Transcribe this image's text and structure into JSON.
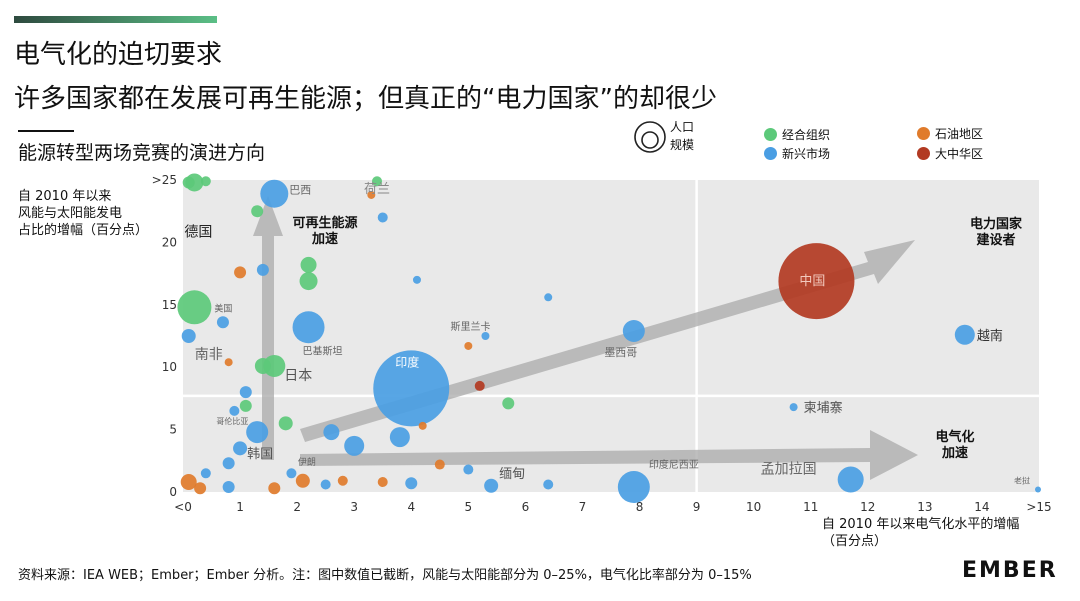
{
  "header": {
    "title_line1": "电气化的迫切要求",
    "title_line2": "许多国家都在发展可再生能源；但真正的“电力国家”的却很少",
    "subtitle": "能源转型两场竞赛的演进方向"
  },
  "legend": {
    "size_title": "人口\n规模",
    "items": [
      {
        "label": "经合组织",
        "color": "#5cc97a"
      },
      {
        "label": "新兴市场",
        "color": "#4a9ee3"
      },
      {
        "label": "石油地区",
        "color": "#e07b2b"
      },
      {
        "label": "大中华区",
        "color": "#b23a22"
      }
    ]
  },
  "chart_data": {
    "type": "scatter",
    "ylabel": "自 2010 年以来\n风能与太阳能发电\n占比的增幅（百分点）",
    "xlabel": "自 2010 年以来电气化水平的增幅\n（百分点）",
    "x_ticks": [
      "<0",
      "1",
      "2",
      "3",
      "4",
      "5",
      "6",
      "7",
      "8",
      "9",
      "10",
      "11",
      "12",
      "13",
      "14",
      ">15"
    ],
    "y_ticks": [
      "0",
      "5",
      "10",
      "15",
      "20",
      ">25"
    ],
    "xlim": [
      0,
      15
    ],
    "ylim": [
      0,
      25
    ],
    "quadrant_lines": {
      "x": 9,
      "y": 7.7
    },
    "arrows": [
      {
        "label": "可再生能源\n加速"
      },
      {
        "label": "电力国家\n建设者"
      },
      {
        "label": "电气化\n加速"
      }
    ],
    "points": [
      {
        "label": "中国",
        "x": 11.1,
        "y": 16.9,
        "group": "大中华区",
        "size": 38
      },
      {
        "label": "印度",
        "x": 4.0,
        "y": 8.3,
        "group": "新兴市场",
        "size": 38
      },
      {
        "label": "越南",
        "x": 13.7,
        "y": 12.6,
        "group": "新兴市场",
        "size": 10
      },
      {
        "label": "墨西哥",
        "x": 7.9,
        "y": 12.9,
        "group": "新兴市场",
        "size": 11
      },
      {
        "label": "印度尼西亚",
        "x": 7.9,
        "y": 0.4,
        "group": "新兴市场",
        "size": 16
      },
      {
        "label": "孟加拉国",
        "x": 11.7,
        "y": 1.0,
        "group": "新兴市场",
        "size": 13
      },
      {
        "label": "柬埔寨",
        "x": 10.7,
        "y": 6.8,
        "group": "新兴市场",
        "size": 4
      },
      {
        "label": "缅甸",
        "x": 5.4,
        "y": 0.5,
        "group": "新兴市场",
        "size": 7
      },
      {
        "label": "巴西",
        "x": 1.6,
        "y": 23.9,
        "group": "新兴市场",
        "size": 14
      },
      {
        "label": "巴基斯坦",
        "x": 2.2,
        "y": 13.2,
        "group": "新兴市场",
        "size": 16
      },
      {
        "label": "南非",
        "x": 0.1,
        "y": 12.5,
        "group": "新兴市场",
        "size": 7
      },
      {
        "label": "斯里兰卡",
        "x": 5.3,
        "y": 12.5,
        "group": "新兴市场",
        "size": 4
      },
      {
        "label": "伊朗",
        "x": 2.1,
        "y": 0.9,
        "group": "石油地区",
        "size": 7
      },
      {
        "label": "德国",
        "x": 0.2,
        "y": 24.8,
        "group": "经合组织",
        "size": 9
      },
      {
        "label": "荷兰",
        "x": 3.4,
        "y": 24.9,
        "group": "经合组织",
        "size": 5
      },
      {
        "label": "美国",
        "x": 0.2,
        "y": 14.8,
        "group": "经合组织",
        "size": 17
      },
      {
        "label": "日本",
        "x": 1.6,
        "y": 10.1,
        "group": "经合组织",
        "size": 11
      },
      {
        "label": "韩国",
        "x": 1.3,
        "y": 4.8,
        "group": "新兴市场",
        "size": 11
      },
      {
        "label": "哥伦比亚",
        "x": 0.9,
        "y": 6.5,
        "group": "新兴市场",
        "size": 5
      },
      {
        "label": "老挝",
        "x": 15.0,
        "y": 0.2,
        "group": "新兴市场",
        "size": 3
      },
      {
        "label": "",
        "x": 0.1,
        "y": 24.8,
        "group": "经合组织",
        "size": 6
      },
      {
        "label": "",
        "x": 0.4,
        "y": 24.9,
        "group": "经合组织",
        "size": 5
      },
      {
        "label": "",
        "x": 1.3,
        "y": 22.5,
        "group": "经合组织",
        "size": 6
      },
      {
        "label": "",
        "x": 2.2,
        "y": 18.2,
        "group": "经合组织",
        "size": 8
      },
      {
        "label": "",
        "x": 2.2,
        "y": 16.9,
        "group": "经合组织",
        "size": 9
      },
      {
        "label": "",
        "x": 1.4,
        "y": 17.8,
        "group": "新兴市场",
        "size": 6
      },
      {
        "label": "",
        "x": 1.0,
        "y": 17.6,
        "group": "石油地区",
        "size": 6
      },
      {
        "label": "",
        "x": 0.7,
        "y": 13.6,
        "group": "新兴市场",
        "size": 6
      },
      {
        "label": "",
        "x": 0.8,
        "y": 10.4,
        "group": "石油地区",
        "size": 4
      },
      {
        "label": "",
        "x": 1.4,
        "y": 10.1,
        "group": "经合组织",
        "size": 8
      },
      {
        "label": "",
        "x": 1.1,
        "y": 8.0,
        "group": "新兴市场",
        "size": 6
      },
      {
        "label": "",
        "x": 1.1,
        "y": 6.9,
        "group": "经合组织",
        "size": 6
      },
      {
        "label": "",
        "x": 1.8,
        "y": 5.5,
        "group": "经合组织",
        "size": 7
      },
      {
        "label": "",
        "x": 1.0,
        "y": 3.5,
        "group": "新兴市场",
        "size": 7
      },
      {
        "label": "",
        "x": 0.8,
        "y": 2.3,
        "group": "新兴市场",
        "size": 6
      },
      {
        "label": "",
        "x": 0.4,
        "y": 1.5,
        "group": "新兴市场",
        "size": 5
      },
      {
        "label": "",
        "x": 0.1,
        "y": 0.8,
        "group": "石油地区",
        "size": 8
      },
      {
        "label": "",
        "x": 0.3,
        "y": 0.3,
        "group": "石油地区",
        "size": 6
      },
      {
        "label": "",
        "x": 0.8,
        "y": 0.4,
        "group": "新兴市场",
        "size": 6
      },
      {
        "label": "",
        "x": 1.6,
        "y": 0.3,
        "group": "石油地区",
        "size": 6
      },
      {
        "label": "",
        "x": 1.9,
        "y": 1.5,
        "group": "新兴市场",
        "size": 5
      },
      {
        "label": "",
        "x": 2.5,
        "y": 0.6,
        "group": "新兴市场",
        "size": 5
      },
      {
        "label": "",
        "x": 2.6,
        "y": 4.8,
        "group": "新兴市场",
        "size": 8
      },
      {
        "label": "",
        "x": 3.0,
        "y": 3.7,
        "group": "新兴市场",
        "size": 10
      },
      {
        "label": "",
        "x": 3.8,
        "y": 4.4,
        "group": "新兴市场",
        "size": 10
      },
      {
        "label": "",
        "x": 3.5,
        "y": 0.8,
        "group": "石油地区",
        "size": 5
      },
      {
        "label": "",
        "x": 4.0,
        "y": 0.7,
        "group": "新兴市场",
        "size": 6
      },
      {
        "label": "",
        "x": 4.5,
        "y": 2.2,
        "group": "石油地区",
        "size": 5
      },
      {
        "label": "",
        "x": 4.2,
        "y": 5.3,
        "group": "石油地区",
        "size": 4
      },
      {
        "label": "",
        "x": 5.2,
        "y": 8.5,
        "group": "大中华区",
        "size": 5
      },
      {
        "label": "",
        "x": 5.7,
        "y": 7.1,
        "group": "经合组织",
        "size": 6
      },
      {
        "label": "",
        "x": 6.4,
        "y": 15.6,
        "group": "新兴市场",
        "size": 4
      },
      {
        "label": "",
        "x": 4.1,
        "y": 17.0,
        "group": "新兴市场",
        "size": 4
      },
      {
        "label": "",
        "x": 3.5,
        "y": 22.0,
        "group": "新兴市场",
        "size": 5
      },
      {
        "label": "",
        "x": 3.3,
        "y": 23.8,
        "group": "石油地区",
        "size": 4
      },
      {
        "label": "",
        "x": 5.0,
        "y": 11.7,
        "group": "石油地区",
        "size": 4
      },
      {
        "label": "",
        "x": 6.4,
        "y": 0.6,
        "group": "新兴市场",
        "size": 5
      },
      {
        "label": "",
        "x": 5.0,
        "y": 1.8,
        "group": "新兴市场",
        "size": 5
      },
      {
        "label": "",
        "x": 2.8,
        "y": 0.9,
        "group": "石油地区",
        "size": 5
      }
    ]
  },
  "footer": {
    "source": "资料来源：IEA WEB；Ember；Ember 分析。注：图中数值已截断，风能与太阳能部分为 0–25%，电气化比率部分为 0–15%",
    "logo": "EMBER"
  }
}
